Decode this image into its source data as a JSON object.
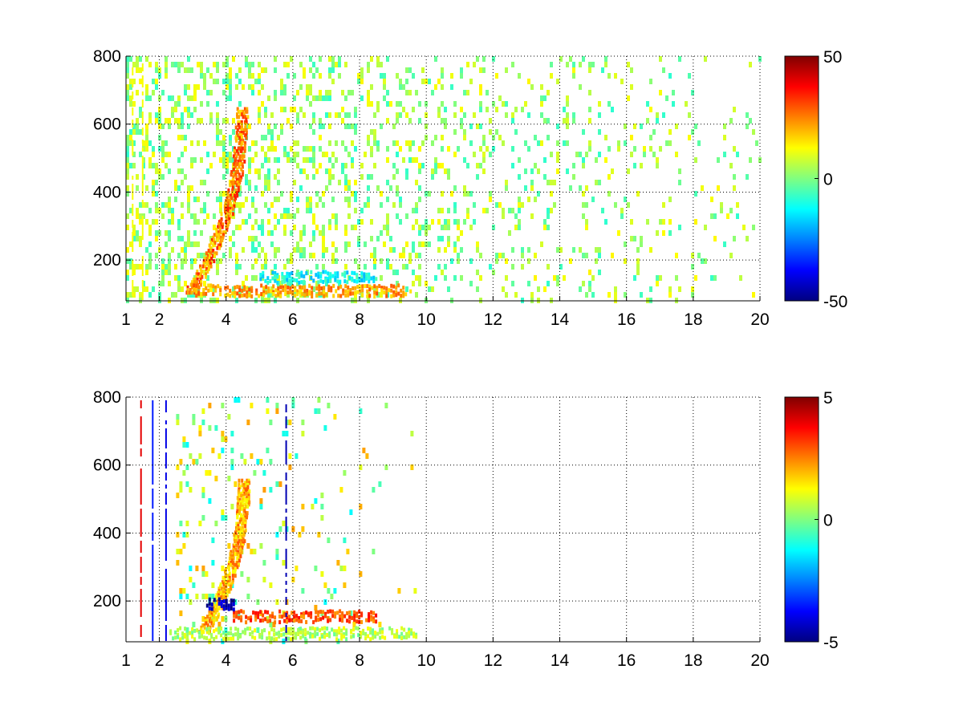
{
  "chart_data": [
    {
      "type": "heatmap",
      "title": "",
      "xlabel": "",
      "ylabel": "",
      "xlim": [
        1,
        20
      ],
      "ylim": [
        80,
        800
      ],
      "x_ticks": [
        1,
        2,
        4,
        6,
        8,
        10,
        12,
        14,
        16,
        18,
        20
      ],
      "y_ticks": [
        200,
        400,
        600,
        800
      ],
      "grid": true,
      "colormap": "jet",
      "colorbar": {
        "range": [
          -50,
          50
        ],
        "ticks": [
          50,
          0,
          -50
        ]
      },
      "features": [
        {
          "kind": "arc",
          "x0": 4.45,
          "x1": 2.9,
          "y_top": 650,
          "y_bottom": 110,
          "value": 25
        },
        {
          "kind": "band",
          "x_start": 3.0,
          "x_end": 9.5,
          "y": 110,
          "value": 22
        },
        {
          "kind": "band",
          "x_start": 5.0,
          "x_end": 8.5,
          "y": 150,
          "value": -12
        },
        {
          "kind": "column",
          "x": 1.2,
          "value": 12
        },
        {
          "kind": "column",
          "x": 1.5,
          "value": 12
        }
      ],
      "noise": {
        "x_start": 1.0,
        "x_end": 20.0,
        "density_near": 0.75,
        "density_far": 0.1,
        "amplitude": 18
      }
    },
    {
      "type": "heatmap",
      "title": "",
      "xlabel": "",
      "ylabel": "",
      "xlim": [
        1,
        20
      ],
      "ylim": [
        80,
        800
      ],
      "x_ticks": [
        1,
        2,
        4,
        6,
        8,
        10,
        12,
        14,
        16,
        18,
        20
      ],
      "y_ticks": [
        200,
        400,
        600,
        800
      ],
      "grid": true,
      "colormap": "jet",
      "colorbar": {
        "range": [
          -5,
          5
        ],
        "ticks": [
          5,
          0,
          -5
        ]
      },
      "features": [
        {
          "kind": "arc",
          "x0": 4.5,
          "x1": 3.3,
          "y_top": 560,
          "y_bottom": 115,
          "value": 2
        },
        {
          "kind": "band",
          "x_start": 2.3,
          "x_end": 9.7,
          "y": 105,
          "value": 0.5
        },
        {
          "kind": "band",
          "x_start": 4.2,
          "x_end": 8.5,
          "y": 155,
          "value": 3
        },
        {
          "kind": "band",
          "x_start": 3.4,
          "x_end": 4.2,
          "y": 190,
          "value": -4.5
        },
        {
          "kind": "column",
          "x": 1.45,
          "value": 4
        },
        {
          "kind": "column",
          "x": 1.8,
          "value": -3.5
        },
        {
          "kind": "column",
          "x": 2.2,
          "value": -4
        },
        {
          "kind": "column",
          "x": 5.8,
          "value": -4.5
        }
      ],
      "noise": {
        "x_start": 2.5,
        "x_end": 9.8,
        "density_near": 0.3,
        "density_far": 0.0,
        "amplitude": 3
      }
    }
  ]
}
